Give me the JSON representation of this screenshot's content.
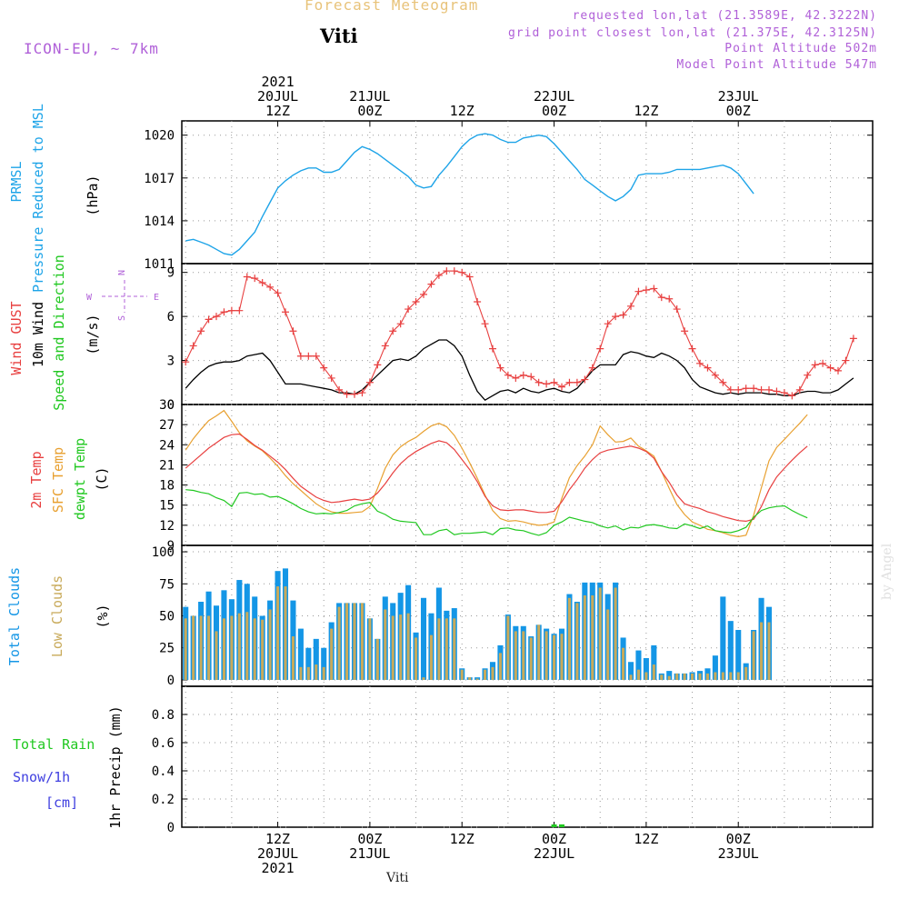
{
  "header": {
    "title": "Forecast Meteogram",
    "location": "Viti",
    "model": "ICON-EU, ~ 7km",
    "requested": "requested lon,lat (21.3589E, 42.3222N)",
    "grid_point": "grid point closest lon,lat (21.375E, 42.3125N)",
    "point_altitude": "Point Altitude 502m",
    "model_altitude": "Model Point Altitude 547m"
  },
  "credit": "by Angel",
  "bottom_label": "Viti",
  "colors": {
    "pressure": "#1ea4e8",
    "gust": "#e84040",
    "wind": "#000000",
    "t2m": "#e84040",
    "sfc": "#e8a030",
    "dewpt": "#20c820",
    "total_clouds": "#1496e6",
    "low_clouds": "#c8aa5a",
    "rain": "#20c820",
    "snow": "#4040e0",
    "compass": "#b060d8"
  },
  "time_axis": {
    "top_labels": [
      {
        "h": 12,
        "lines": [
          "2021",
          "20JUL",
          "12Z"
        ]
      },
      {
        "h": 24,
        "lines": [
          "21JUL",
          "00Z"
        ]
      },
      {
        "h": 36,
        "lines": [
          "12Z"
        ]
      },
      {
        "h": 48,
        "lines": [
          "22JUL",
          "00Z"
        ]
      },
      {
        "h": 60,
        "lines": [
          "12Z"
        ]
      },
      {
        "h": 72,
        "lines": [
          "23JUL",
          "00Z"
        ]
      }
    ],
    "bottom_labels": [
      {
        "h": 12,
        "lines": [
          "12Z",
          "20JUL",
          "2021"
        ]
      },
      {
        "h": 24,
        "lines": [
          "00Z",
          "21JUL"
        ]
      },
      {
        "h": 36,
        "lines": [
          "12Z"
        ]
      },
      {
        "h": 48,
        "lines": [
          "00Z",
          "22JUL"
        ]
      },
      {
        "h": 60,
        "lines": [
          "12Z"
        ]
      },
      {
        "h": 72,
        "lines": [
          "00Z",
          "23JUL"
        ]
      }
    ]
  },
  "panels": {
    "pressure": {
      "labels": [
        "PRMSL",
        "Pressure Reduced to MSL"
      ],
      "unit": "(hPa)"
    },
    "wind": {
      "labels": [
        "Wind GUST",
        "10m Wind",
        "Speed and Direction"
      ],
      "unit": "(m/s)",
      "compass": {
        "n": "N",
        "s": "S",
        "w": "W",
        "e": "E"
      }
    },
    "temp": {
      "labels": [
        "2m Temp",
        "SFC Temp",
        "dewpt Temp"
      ],
      "unit": "(C)"
    },
    "clouds": {
      "labels": [
        "Total Clouds",
        "Low Clouds"
      ],
      "unit": "(%)"
    },
    "precip": {
      "labels": [
        "Total  Rain",
        "Snow/1h",
        "[cm]"
      ],
      "ylabel": "1hr Precip (mm)"
    }
  },
  "chart_data": [
    {
      "type": "line",
      "id": "pressure",
      "ylabel": "Pressure Reduced to MSL (hPa)",
      "ylim": [
        1011,
        1021
      ],
      "yticks": [
        1011,
        1014,
        1017,
        1020
      ],
      "grid": true,
      "x_hours": [
        0,
        1,
        2,
        3,
        4,
        5,
        6,
        7,
        8,
        9,
        10,
        11,
        12,
        13,
        14,
        15,
        16,
        17,
        18,
        19,
        20,
        21,
        22,
        23,
        24,
        25,
        26,
        27,
        28,
        29,
        30,
        31,
        32,
        33,
        34,
        35,
        36,
        37,
        38,
        39,
        40,
        41,
        42,
        43,
        44,
        45,
        46,
        47,
        48,
        49,
        50,
        51,
        52,
        53,
        54,
        55,
        56,
        57,
        58,
        59,
        60,
        61,
        62,
        63,
        64,
        65,
        66,
        67,
        68,
        69,
        70,
        71,
        72,
        73,
        74,
        75,
        76,
        77,
        78,
        79,
        80,
        81,
        82,
        83,
        84,
        85,
        86,
        87,
        88,
        89,
        90
      ],
      "series": [
        {
          "values": [
            1012.6,
            1012.7,
            1012.5,
            1012.3,
            1012.0,
            1011.7,
            1011.6,
            1012.0,
            1012.6,
            1013.2,
            1014.3,
            1015.3,
            1016.3,
            1016.8,
            1017.2,
            1017.5,
            1017.7,
            1017.7,
            1017.4,
            1017.4,
            1017.6,
            1018.2,
            1018.8,
            1019.2,
            1019.0,
            1018.7,
            1018.3,
            1017.9,
            1017.5,
            1017.1,
            1016.5,
            1016.3,
            1016.4,
            1017.2,
            1017.8,
            1018.5,
            1019.2,
            1019.7,
            1020.0,
            1020.1,
            1020.0,
            1019.7,
            1019.5,
            1019.5,
            1019.8,
            1019.9,
            1020.0,
            1019.9,
            1019.4,
            1018.8,
            1018.2,
            1017.6,
            1016.9,
            1016.5,
            1016.1,
            1015.7,
            1015.4,
            1015.7,
            1016.2,
            1017.2,
            1017.3,
            1017.3,
            1017.3,
            1017.4,
            1017.6,
            1017.6,
            1017.6,
            1017.6,
            1017.7,
            1017.8,
            1017.9,
            1017.7,
            1017.3,
            1016.6,
            1015.9
          ]
        }
      ]
    },
    {
      "type": "line",
      "id": "wind",
      "ylabel": "Speed and Direction (m/s)",
      "ylim": [
        0,
        9.6
      ],
      "yticks": [
        0,
        3,
        6,
        9
      ],
      "grid": true,
      "series": [
        {
          "name": "Wind GUST",
          "values": [
            2.9,
            4.0,
            5.0,
            5.8,
            6.0,
            6.3,
            6.4,
            6.4,
            8.7,
            8.6,
            8.3,
            8.0,
            7.6,
            6.3,
            5.0,
            3.3,
            3.3,
            3.3,
            2.5,
            1.8,
            1.0,
            0.7,
            0.7,
            0.8,
            1.5,
            2.7,
            4.0,
            5.0,
            5.5,
            6.5,
            7.0,
            7.5,
            8.2,
            8.8,
            9.1,
            9.1,
            9.0,
            8.7,
            7.0,
            5.5,
            3.8,
            2.5,
            2.0,
            1.8,
            2.0,
            1.9,
            1.5,
            1.4,
            1.5,
            1.2,
            1.5,
            1.5,
            1.7,
            2.5,
            3.8,
            5.5,
            6.0,
            6.1,
            6.7,
            7.7,
            7.8,
            7.9,
            7.3,
            7.2,
            6.5,
            5.0,
            3.8,
            2.8,
            2.5,
            2.0,
            1.5,
            1.0,
            1.0,
            1.1,
            1.1,
            1.0,
            1.0,
            0.9,
            0.8,
            0.6,
            1.0,
            2.0,
            2.7,
            2.8,
            2.5,
            2.3,
            3.0,
            4.5
          ]
        },
        {
          "name": "10m Wind",
          "values": [
            1.1,
            1.7,
            2.2,
            2.6,
            2.8,
            2.9,
            2.9,
            3.0,
            3.3,
            3.4,
            3.5,
            3.0,
            2.2,
            1.4,
            1.4,
            1.4,
            1.3,
            1.2,
            1.1,
            1.0,
            0.8,
            0.8,
            0.7,
            1.0,
            1.5,
            2.0,
            2.5,
            3.0,
            3.1,
            3.0,
            3.3,
            3.8,
            4.1,
            4.4,
            4.4,
            4.0,
            3.3,
            2.0,
            0.9,
            0.3,
            0.6,
            0.9,
            1.0,
            0.8,
            1.1,
            0.9,
            0.8,
            1.0,
            1.1,
            0.9,
            0.8,
            1.1,
            1.7,
            2.3,
            2.7,
            2.7,
            2.7,
            3.4,
            3.6,
            3.5,
            3.3,
            3.2,
            3.5,
            3.3,
            3.0,
            2.5,
            1.7,
            1.2,
            1.0,
            0.8,
            0.7,
            0.8,
            0.7,
            0.8,
            0.8,
            0.8,
            0.7,
            0.7,
            0.6,
            0.6,
            0.8,
            0.9,
            0.9,
            0.8,
            0.8,
            1.0,
            1.4,
            1.8
          ]
        }
      ]
    },
    {
      "type": "line",
      "id": "temp",
      "ylabel": "(C)",
      "ylim": [
        9,
        30
      ],
      "yticks": [
        9,
        12,
        15,
        18,
        21,
        24,
        27,
        30
      ],
      "grid": true,
      "series": [
        {
          "name": "2m Temp",
          "values": [
            20.5,
            21.5,
            22.5,
            23.5,
            24.3,
            25.1,
            25.5,
            25.6,
            24.8,
            23.9,
            23.2,
            22.3,
            21.4,
            20.3,
            19.0,
            17.8,
            17.0,
            16.2,
            15.7,
            15.4,
            15.5,
            15.7,
            15.9,
            15.7,
            15.9,
            16.8,
            18.2,
            19.8,
            21.2,
            22.2,
            23.0,
            23.6,
            24.2,
            24.6,
            24.3,
            23.3,
            21.8,
            20.3,
            18.5,
            16.3,
            14.9,
            14.3,
            14.2,
            14.3,
            14.3,
            14.1,
            13.9,
            13.9,
            14.1,
            15.5,
            17.3,
            18.8,
            20.5,
            21.8,
            22.8,
            23.2,
            23.4,
            23.6,
            23.8,
            23.5,
            23.0,
            22.0,
            20.0,
            18.4,
            16.5,
            15.2,
            14.8,
            14.5,
            14.0,
            13.7,
            13.3,
            13.0,
            12.7,
            12.6,
            12.9,
            14.8,
            17.3,
            19.2,
            20.5,
            21.7,
            22.8,
            23.8
          ]
        },
        {
          "name": "SFC Temp",
          "values": [
            23.2,
            24.9,
            26.3,
            27.6,
            28.3,
            29.1,
            27.5,
            25.8,
            24.6,
            23.8,
            23.1,
            22.0,
            20.8,
            19.4,
            18.2,
            17.2,
            16.2,
            15.2,
            14.5,
            14.0,
            13.8,
            13.8,
            13.9,
            14.0,
            14.8,
            17.5,
            20.5,
            22.5,
            23.7,
            24.5,
            25.1,
            26.0,
            26.8,
            27.2,
            26.7,
            25.4,
            23.5,
            21.3,
            19.0,
            16.5,
            14.2,
            13.0,
            12.6,
            12.7,
            12.5,
            12.2,
            12.0,
            12.1,
            12.5,
            16.0,
            19.1,
            20.9,
            22.3,
            24.0,
            26.8,
            25.5,
            24.4,
            24.5,
            25.0,
            23.8,
            23.1,
            22.3,
            20.0,
            17.5,
            15.1,
            13.6,
            12.5,
            12.0,
            11.4,
            11.2,
            10.9,
            10.5,
            10.3,
            10.5,
            13.5,
            17.6,
            21.6,
            23.6,
            24.8,
            26.0,
            27.2,
            28.5
          ]
        },
        {
          "name": "dewpt Temp",
          "values": [
            17.3,
            17.2,
            16.9,
            16.7,
            16.1,
            15.7,
            14.8,
            16.8,
            16.9,
            16.6,
            16.7,
            16.2,
            16.3,
            15.8,
            15.2,
            14.5,
            14.0,
            13.7,
            13.8,
            13.7,
            13.9,
            14.2,
            14.9,
            15.2,
            15.4,
            14.1,
            13.6,
            12.9,
            12.6,
            12.5,
            12.4,
            10.6,
            10.6,
            11.2,
            11.4,
            10.6,
            10.8,
            10.8,
            10.9,
            11.0,
            10.6,
            11.5,
            11.6,
            11.3,
            11.2,
            10.8,
            10.5,
            10.9,
            12.0,
            12.5,
            13.2,
            12.9,
            12.6,
            12.4,
            11.9,
            11.6,
            11.9,
            11.3,
            11.7,
            11.6,
            12.0,
            12.1,
            11.9,
            11.6,
            11.5,
            12.2,
            11.9,
            11.5,
            11.9,
            11.2,
            11.0,
            10.9,
            11.2,
            11.7,
            13.2,
            14.2,
            14.6,
            14.8,
            14.9,
            14.2,
            13.6,
            13.1
          ]
        }
      ]
    },
    {
      "type": "bar",
      "id": "clouds",
      "ylabel": "(%)",
      "ylim": [
        -5,
        105
      ],
      "yticks": [
        0,
        25,
        50,
        75,
        100
      ],
      "grid": true,
      "series": [
        {
          "name": "Total Clouds",
          "values": [
            57,
            50,
            61,
            69,
            58,
            70,
            63,
            78,
            75,
            65,
            50,
            62,
            85,
            87,
            62,
            40,
            25,
            32,
            25,
            45,
            60,
            60,
            60,
            60,
            48,
            32,
            65,
            60,
            68,
            74,
            37,
            64,
            52,
            72,
            54,
            56,
            9,
            2,
            2,
            9,
            14,
            27,
            51,
            42,
            42,
            34,
            43,
            40,
            36,
            40,
            67,
            61,
            76,
            76,
            76,
            67,
            76,
            33,
            14,
            23,
            17,
            27,
            5,
            7,
            5,
            5,
            6,
            7,
            9,
            19,
            65,
            46,
            39,
            13,
            39,
            64,
            57
          ]
        },
        {
          "name": "Low Clouds",
          "values": [
            48,
            50,
            50,
            50,
            38,
            48,
            50,
            52,
            53,
            48,
            47,
            55,
            73,
            73,
            34,
            10,
            10,
            12,
            10,
            40,
            57,
            60,
            60,
            60,
            48,
            32,
            55,
            50,
            51,
            52,
            33,
            2,
            35,
            48,
            48,
            48,
            8,
            2,
            1,
            8,
            10,
            21,
            50,
            38,
            38,
            33,
            43,
            38,
            35,
            36,
            64,
            60,
            66,
            66,
            72,
            55,
            72,
            25,
            4,
            8,
            6,
            12,
            4,
            3,
            5,
            5,
            5,
            5,
            5,
            6,
            6,
            6,
            6,
            10,
            38,
            45,
            45
          ]
        }
      ]
    },
    {
      "type": "bar",
      "id": "precip",
      "ylabel": "1hr Precip (mm)",
      "ylim": [
        0,
        1.0
      ],
      "yticks": [
        0,
        0.2,
        0.4,
        0.6,
        0.8
      ],
      "grid": true,
      "series": [
        {
          "name": "Total Rain",
          "values": [
            {
              "h": 48,
              "v": 0.02
            },
            {
              "h": 49,
              "v": 0.02
            }
          ]
        },
        {
          "name": "Snow/1h",
          "values": []
        }
      ]
    }
  ]
}
